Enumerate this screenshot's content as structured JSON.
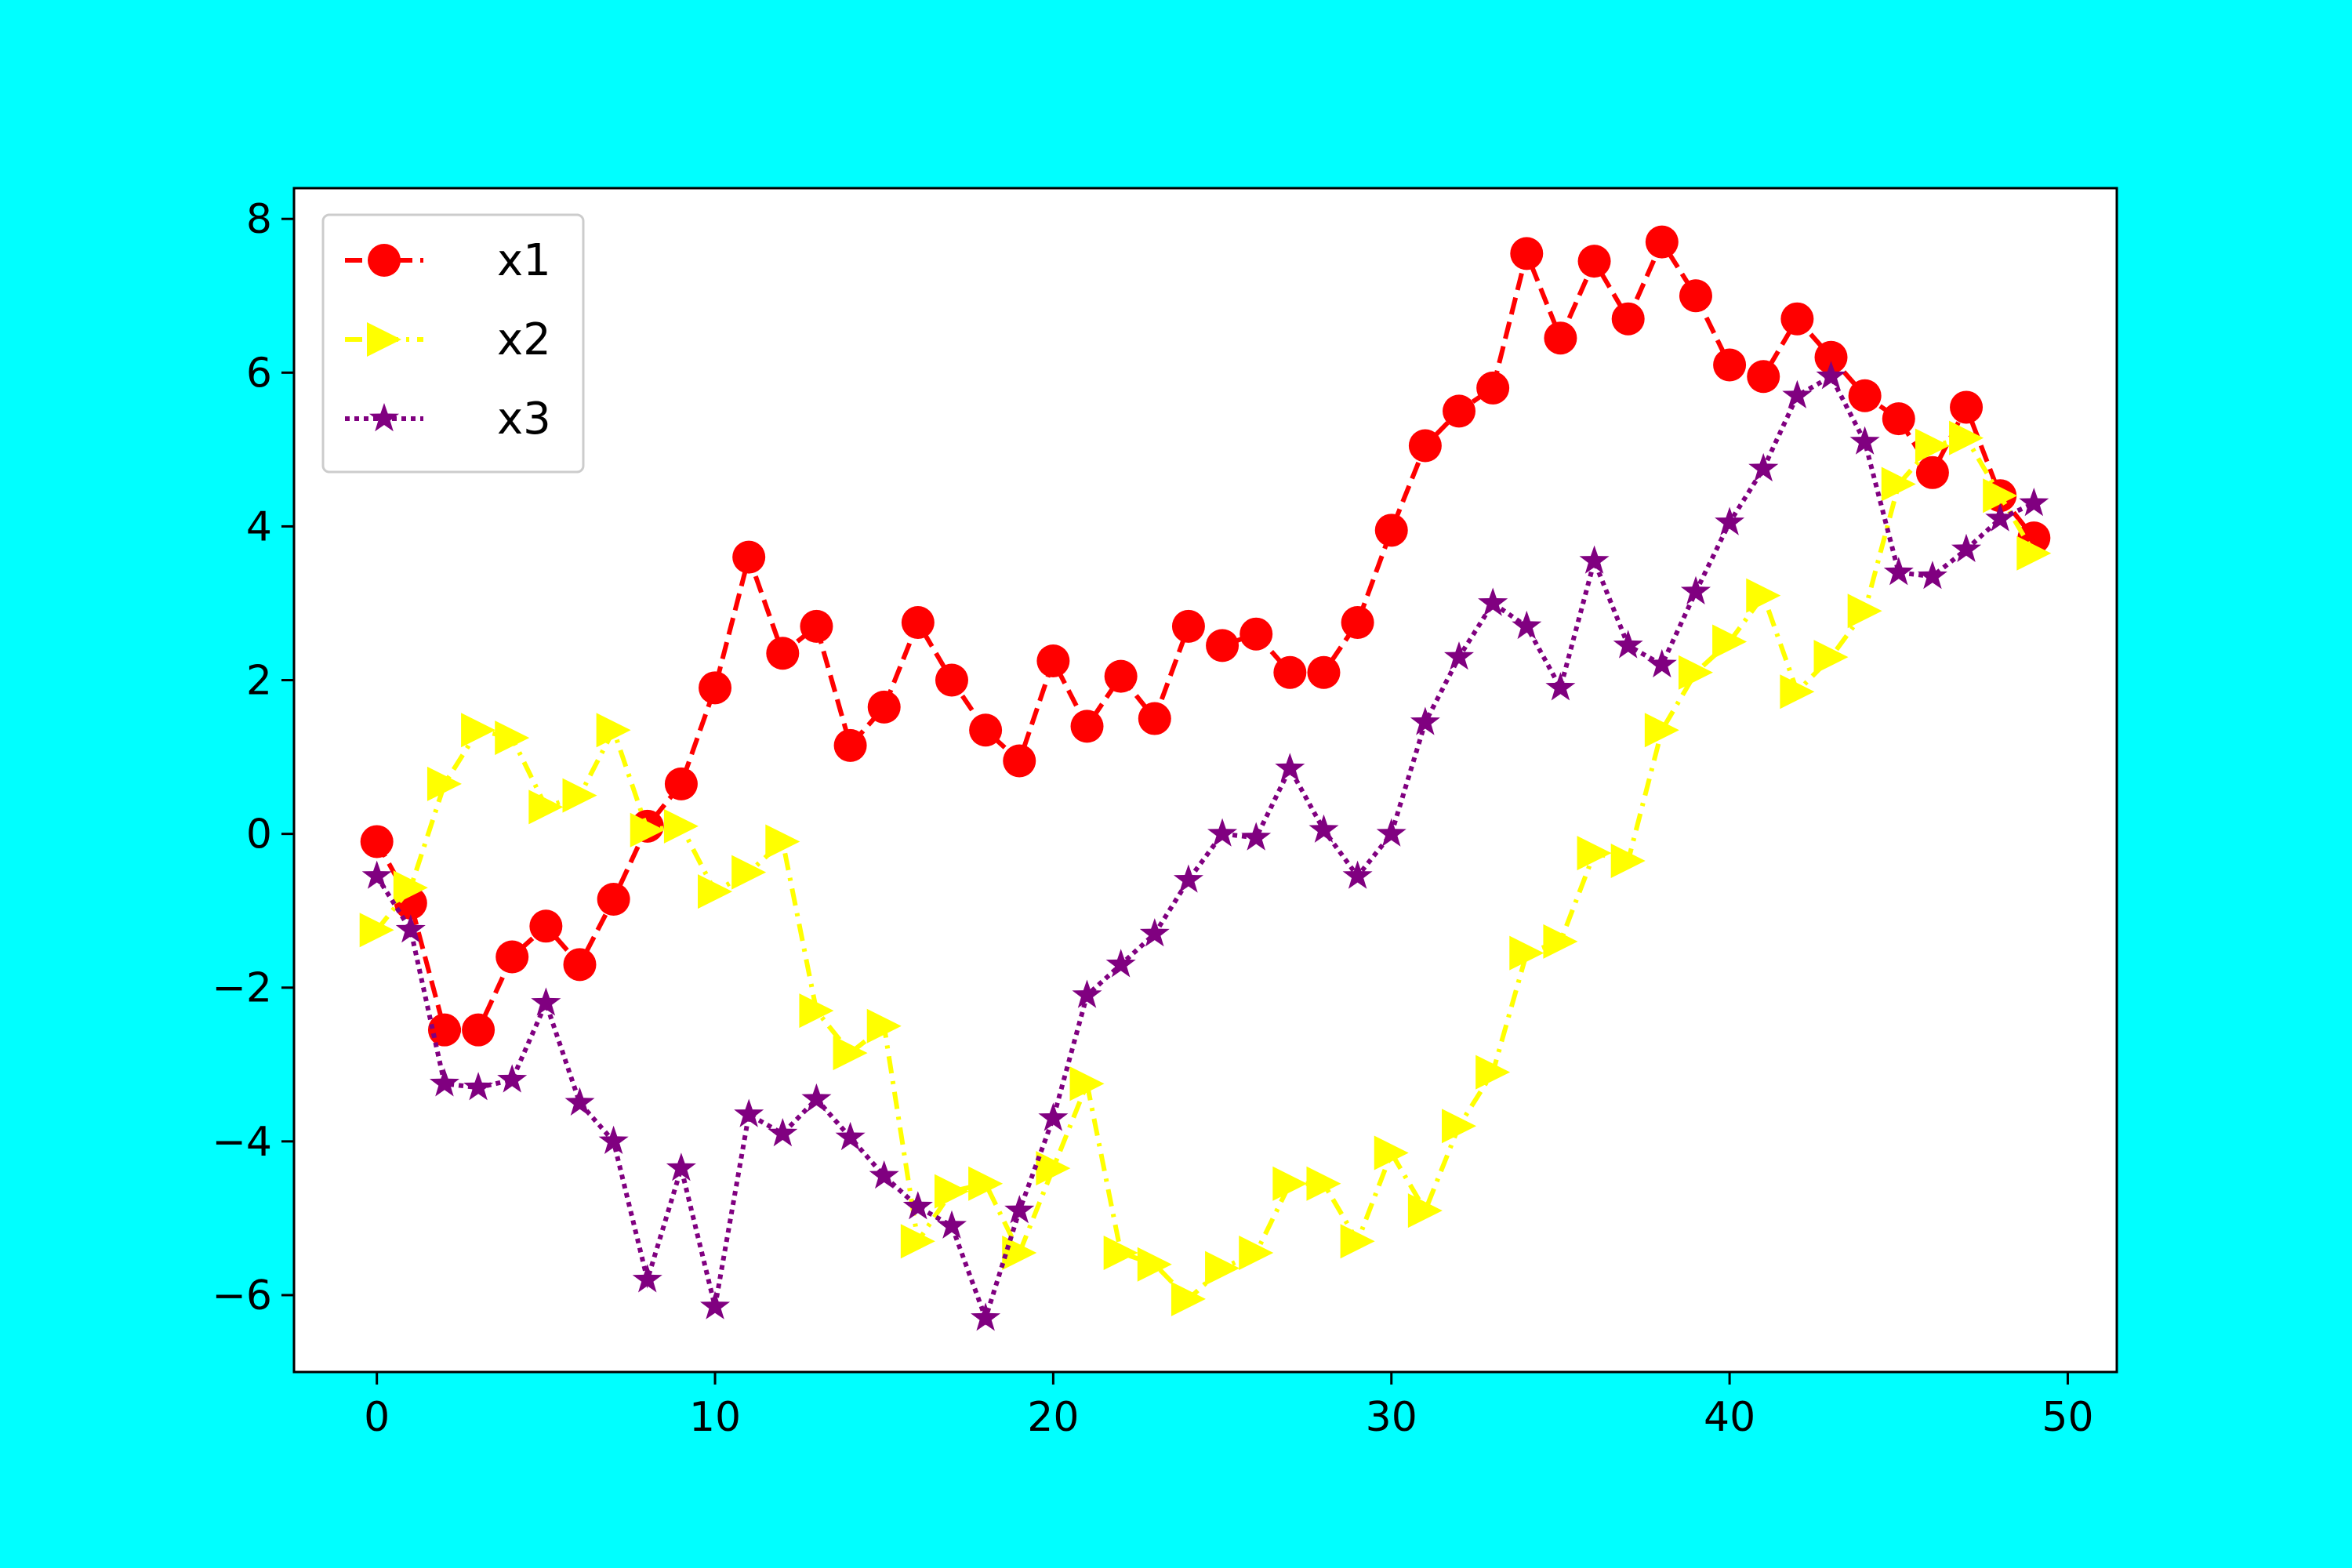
{
  "chart_data": {
    "type": "line",
    "title": "",
    "xlabel": "",
    "ylabel": "",
    "xlim": [
      -2.45,
      51.45
    ],
    "ylim": [
      -7.0,
      8.4
    ],
    "xticks": [
      0,
      10,
      20,
      30,
      40,
      50
    ],
    "yticks": [
      -6,
      -4,
      -2,
      0,
      2,
      4,
      6,
      8
    ],
    "xtick_labels": [
      "0",
      "10",
      "20",
      "30",
      "40",
      "50"
    ],
    "ytick_labels": [
      "−6",
      "−4",
      "−2",
      "0",
      "2",
      "4",
      "6",
      "8"
    ],
    "grid": false,
    "legend_position": "upper-left",
    "x": [
      0,
      1,
      2,
      3,
      4,
      5,
      6,
      7,
      8,
      9,
      10,
      11,
      12,
      13,
      14,
      15,
      16,
      17,
      18,
      19,
      20,
      21,
      22,
      23,
      24,
      25,
      26,
      27,
      28,
      29,
      30,
      31,
      32,
      33,
      34,
      35,
      36,
      37,
      38,
      39,
      40,
      41,
      42,
      43,
      44,
      45,
      46,
      47,
      48,
      49
    ],
    "series": [
      {
        "name": "x1",
        "color": "#ff0000",
        "marker": "circle",
        "linestyle": "dashed",
        "values": [
          -0.1,
          -0.9,
          -2.55,
          -2.55,
          -1.6,
          -1.2,
          -1.7,
          -0.85,
          0.1,
          0.65,
          1.9,
          3.6,
          2.35,
          2.7,
          1.15,
          1.65,
          2.75,
          2.0,
          1.35,
          0.95,
          2.25,
          1.4,
          2.05,
          1.5,
          2.7,
          2.45,
          2.6,
          2.1,
          2.1,
          2.75,
          3.95,
          5.05,
          5.5,
          5.8,
          7.55,
          6.45,
          7.45,
          6.7,
          7.7,
          7.0,
          6.1,
          5.95,
          6.7,
          6.2,
          5.7,
          5.4,
          4.7,
          5.55,
          4.4,
          3.85
        ]
      },
      {
        "name": "x2",
        "color": "#ffff00",
        "marker": "triangle-right",
        "linestyle": "dashdot",
        "values": [
          -1.25,
          -0.7,
          0.65,
          1.35,
          1.25,
          0.35,
          0.5,
          1.35,
          0.05,
          0.1,
          -0.75,
          -0.5,
          -0.1,
          -2.3,
          -2.85,
          -2.5,
          -5.3,
          -4.65,
          -4.55,
          -5.45,
          -4.35,
          -3.25,
          -5.45,
          -5.6,
          -6.05,
          -5.65,
          -5.45,
          -4.55,
          -4.55,
          -5.3,
          -4.15,
          -4.9,
          -3.8,
          -3.1,
          -1.55,
          -1.4,
          -0.25,
          -0.35,
          1.35,
          2.1,
          2.5,
          3.1,
          1.85,
          2.3,
          2.9,
          4.55,
          5.05,
          5.15,
          4.4,
          3.65
        ]
      },
      {
        "name": "x3",
        "color": "#800080",
        "marker": "star",
        "linestyle": "dotted",
        "values": [
          -0.55,
          -1.25,
          -3.25,
          -3.3,
          -3.2,
          -2.2,
          -3.5,
          -4.0,
          -5.8,
          -4.35,
          -6.15,
          -3.65,
          -3.9,
          -3.45,
          -3.95,
          -4.45,
          -4.85,
          -5.1,
          -6.3,
          -4.9,
          -3.7,
          -2.1,
          -1.7,
          -1.3,
          -0.6,
          0.0,
          -0.05,
          0.85,
          0.05,
          -0.55,
          0.0,
          1.45,
          2.3,
          3.0,
          2.7,
          1.9,
          3.55,
          2.45,
          2.2,
          3.15,
          4.05,
          4.75,
          5.7,
          5.95,
          5.1,
          3.4,
          3.35,
          3.7,
          4.1,
          4.3
        ]
      }
    ]
  }
}
